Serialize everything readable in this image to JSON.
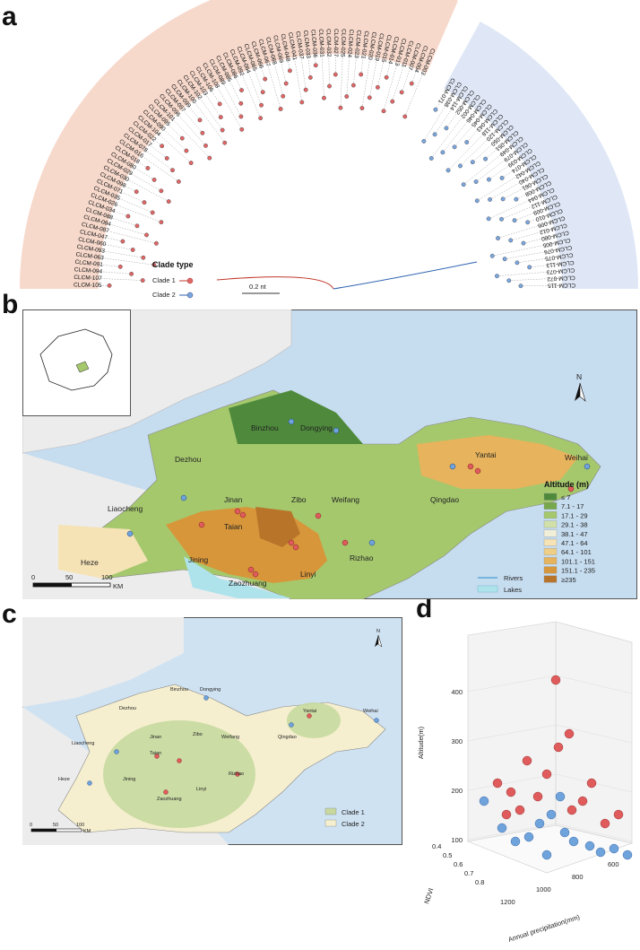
{
  "panels": {
    "a": "a",
    "b": "b",
    "c": "c",
    "d": "d"
  },
  "tree": {
    "legend_title": "Clade type",
    "legend_items": [
      {
        "label": "Clade 1",
        "color": "#d9534f"
      },
      {
        "label": "Clade 2",
        "color": "#5b8fd6"
      }
    ],
    "scale_label": "0.2 nt",
    "clade1_labels": [
      "CLCM-105",
      "CLCM-107",
      "CLCM-094",
      "CLCM-091",
      "CLCM-063",
      "CLCM-093",
      "CLCM-060",
      "CLCM-047",
      "CLCM-087",
      "CLCM-084",
      "CLCM-088",
      "CLCM-034",
      "CLCM-026",
      "CLCM-035",
      "CLCM-071",
      "CLCM-098",
      "CLCM-030",
      "CLCM-029",
      "CLCM-080",
      "CLCM-018",
      "CLCM-016",
      "CLCM-078",
      "CLCM-017",
      "CLCM-022",
      "CLCM-104",
      "CLCM-090",
      "CLCM-095",
      "CLCM-101",
      "CLCM-096",
      "CLCM-097",
      "CLCM-099",
      "CLCM-100",
      "CLCM-102",
      "CLCM-103",
      "CLCM-106",
      "CLCM-108",
      "CLCM-089",
      "CLCM-085",
      "CLCM-086",
      "CLCM-092",
      "CLCM-064",
      "CLCM-065",
      "CLCM-066",
      "CLCM-067",
      "CLCM-068",
      "CLCM-069",
      "CLCM-048",
      "CLCM-041",
      "CLCM-037",
      "CLCM-033",
      "CLCM-036",
      "CLCM-031",
      "CLCM-032",
      "CLCM-027",
      "CLCM-025",
      "CLCM-024",
      "CLCM-023",
      "CLCM-021",
      "CLCM-020",
      "CLCM-019",
      "CLCM-015",
      "CLCM-014",
      "CLCM-013",
      "CLCM-011",
      "CLCM-007",
      "CLCM-004",
      "CLCM-003"
    ],
    "clade2_labels": [
      "CLCM-071",
      "CLCM-038",
      "CLCM-114",
      "CLCM-052",
      "CLCM-002",
      "CLCM-046",
      "CLCM-045",
      "CLCM-043",
      "CLCM-118",
      "CLCM-120",
      "CLCM-050",
      "CLCM-051",
      "CLCM-049",
      "CLCM-079",
      "CLCM-039",
      "CLCM-074",
      "CLCM-042",
      "CLCM-040",
      "CLCM-061",
      "CLCM-008",
      "CLCM-044",
      "CLCM-112",
      "CLCM-009",
      "CLCM-010",
      "CLCM-006",
      "CLCM-012",
      "CLCM-080",
      "CLCM-005",
      "CLCM-076",
      "CLCM-075",
      "CLCM-113",
      "CLCM-073",
      "CLCM-072",
      "CLCM-115"
    ]
  },
  "map_b": {
    "cities": [
      "Binzhou",
      "Dongying",
      "Dezhou",
      "Yantai",
      "Weihai",
      "Liaocheng",
      "Jinan",
      "Zibo",
      "Weifang",
      "Qingdao",
      "Taian",
      "Rizhao",
      "Jining",
      "Heze",
      "Linyi",
      "Zaozhuang"
    ],
    "north": "N",
    "scale": [
      "0",
      "50",
      "100",
      "KM"
    ],
    "legend_title": "Altitude (m)",
    "altitude_classes": [
      {
        "label": "≤ 7",
        "color": "#4f8a3c"
      },
      {
        "label": "7.1 - 17",
        "color": "#77a84c"
      },
      {
        "label": "17.1 - 29",
        "color": "#a5c86d"
      },
      {
        "label": "29.1 - 38",
        "color": "#d1e0a8"
      },
      {
        "label": "38.1 - 47",
        "color": "#f2efd9"
      },
      {
        "label": "47.1 - 64",
        "color": "#f5e3b6"
      },
      {
        "label": "64.1 - 101",
        "color": "#efcf86"
      },
      {
        "label": "101.1 - 151",
        "color": "#e7b35c"
      },
      {
        "label": "151.1 - 235",
        "color": "#d8963a"
      },
      {
        "label": "≥235",
        "color": "#b8752a"
      }
    ],
    "rivers_label": "Rivers",
    "lakes_label": "Lakes"
  },
  "map_c": {
    "cities": [
      "Binzhou",
      "Dongying",
      "Dezhou",
      "Yantai",
      "Weihai",
      "Liaocheng",
      "Jinan",
      "Zibo",
      "Weifang",
      "Qingdao",
      "Taian",
      "Rizhao",
      "Jining",
      "Heze",
      "Linyi",
      "Zaozhuang"
    ],
    "north": "N",
    "scale": [
      "0",
      "50",
      "100",
      "KM"
    ],
    "legend": [
      {
        "label": "Clade 1",
        "color": "#c8d9a0"
      },
      {
        "label": "Clade 2",
        "color": "#f6efcf"
      }
    ]
  },
  "chart_data": {
    "type": "scatter",
    "axes": {
      "z_label": "Altitude(m)",
      "x_label": "Annual precipitation(mm)",
      "y_label": "NDVI"
    },
    "z_ticks": [
      "100",
      "200",
      "300",
      "400"
    ],
    "x_ticks": [
      "1200",
      "1000",
      "800",
      "600"
    ],
    "y_ticks": [
      "0.4",
      "0.5",
      "0.6",
      "0.7",
      "0.8"
    ],
    "series": [
      {
        "name": "Clade 1",
        "color": "#e05c5c"
      },
      {
        "name": "Clade 2",
        "color": "#6fa3dc"
      }
    ]
  }
}
